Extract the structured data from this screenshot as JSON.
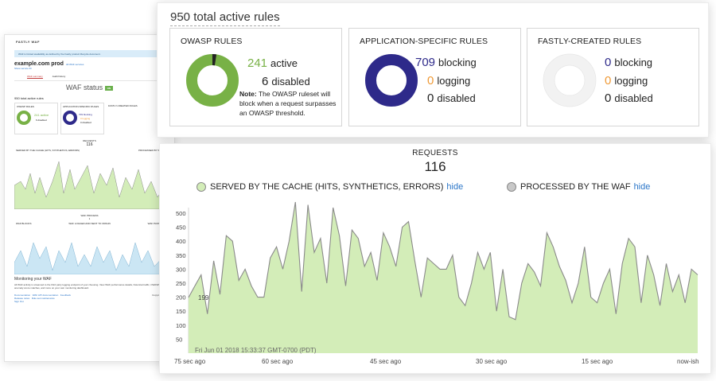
{
  "background": {
    "brand": "FASTLY WAF",
    "notice": "WAF is limited availability as defined by the Fastly product lifecycle document.",
    "service_name": "example.com prod",
    "all_services_link": "All WAF services",
    "show_service_id": "Show service ID",
    "tabs": [
      "WAF summary",
      "Audit history"
    ],
    "status_title": "WAF status",
    "status_badge": "ON",
    "total": "950 total active rules",
    "cards": [
      {
        "title": "OWASP RULES",
        "line1": "241 active",
        "line2": "6 disabled",
        "note": "Note: The OWASP ruleset will block when a request surpasses an OWASP threshold."
      },
      {
        "title": "APPLICATION-SPECIFIC RULES",
        "line1": "709 blocking",
        "line2": "0 logging",
        "line3": "0 disabled"
      },
      {
        "title": "FASTLY-CREATED RULES"
      }
    ],
    "requests_title": "REQUESTS",
    "requests_count": "116",
    "legend_served": "SERVED BY THE CACHE (HITS, SYNTHETICS, ERRORS)",
    "legend_processed": "PROCESSED BY WAF",
    "hide": "hide",
    "waf_process_title": "WAF PROCESS",
    "waf_process_count": "1",
    "legend_blocks": "WAF BLOCKS",
    "legend_logged": "WAF LOGGED AND SENT TO ORIGIN",
    "legend_passed": "WAF PASSED",
    "monitoring_title": "Monitoring your WAF",
    "monitoring_text": "All WAF activity is streamed to the third party logging endpoint of your choosing. View WAF performance details, historical traffic, OWASP anomaly score matches, and more on your own monitoring dashboard.",
    "footer_links": [
      "Documentation",
      "WAF API documentation",
      "Feedback",
      "Release notes",
      "Rule set maintenance",
      "Sign Out"
    ],
    "copyright": "Copyright ©"
  },
  "summary": {
    "total": "950 total active rules",
    "owasp": {
      "title": "OWASP RULES",
      "active_value": "241",
      "active_label": "active",
      "disabled_value": "6",
      "disabled_label": "disabled",
      "note_bold": "Note:",
      "note_text": " The OWASP ruleset will block when a request surpasses an OWASP threshold.",
      "active": 241,
      "disabled": 6
    },
    "application": {
      "title": "APPLICATION-SPECIFIC RULES",
      "blocking_value": "709",
      "blocking_label": "blocking",
      "logging_value": "0",
      "logging_label": "logging",
      "disabled_value": "0",
      "disabled_label": "disabled"
    },
    "fastly": {
      "title": "FASTLY-CREATED RULES",
      "blocking_value": "0",
      "blocking_label": "blocking",
      "logging_value": "0",
      "logging_label": "logging",
      "disabled_value": "0",
      "disabled_label": "disabled"
    }
  },
  "requests": {
    "title": "REQUESTS",
    "count": "116",
    "legend_served": "SERVED BY THE CACHE (HITS, SYNTHETICS, ERRORS)",
    "legend_processed": "PROCESSED BY THE WAF",
    "hide_label": "hide",
    "tooltip_value": "199",
    "tooltip_time": "Fri Jun 01 2018 15:33:37 GMT-0700 (PDT)",
    "x_labels": [
      "75 sec ago",
      "60 sec ago",
      "45 sec ago",
      "30 sec ago",
      "15 sec ago",
      "now-ish"
    ]
  },
  "colors": {
    "served_fill": "#d3edb8",
    "served_line": "#8a8a8a",
    "processed": "#c8c8c8",
    "owasp_green": "#78b146",
    "app_blue": "#2e2a8a",
    "logging_orange": "#ef9a37",
    "link_blue": "#2a75c8"
  },
  "chart_data": {
    "type": "area",
    "title": "REQUESTS",
    "xlabel": "",
    "ylabel": "",
    "y_ticks": [
      50,
      100,
      150,
      200,
      250,
      300,
      350,
      400,
      450,
      500
    ],
    "ylim": [
      0,
      520
    ],
    "x_tick_labels": [
      "75 sec ago",
      "60 sec ago",
      "45 sec ago",
      "30 sec ago",
      "15 sec ago",
      "now-ish"
    ],
    "series": [
      {
        "name": "SERVED BY THE CACHE (HITS, SYNTHETICS, ERRORS)",
        "values": [
          199,
          240,
          280,
          140,
          330,
          210,
          420,
          400,
          260,
          300,
          240,
          200,
          200,
          340,
          380,
          300,
          400,
          540,
          220,
          530,
          360,
          410,
          250,
          520,
          420,
          240,
          440,
          410,
          310,
          360,
          260,
          430,
          380,
          310,
          450,
          470,
          330,
          200,
          340,
          320,
          300,
          300,
          350,
          200,
          170,
          250,
          360,
          300,
          360,
          150,
          300,
          130,
          120,
          250,
          320,
          290,
          240,
          430,
          380,
          310,
          260,
          180,
          250,
          380,
          200,
          180,
          250,
          300,
          140,
          320,
          410,
          380,
          180,
          350,
          280,
          170,
          320,
          220,
          280,
          180,
          300,
          280
        ]
      }
    ]
  }
}
